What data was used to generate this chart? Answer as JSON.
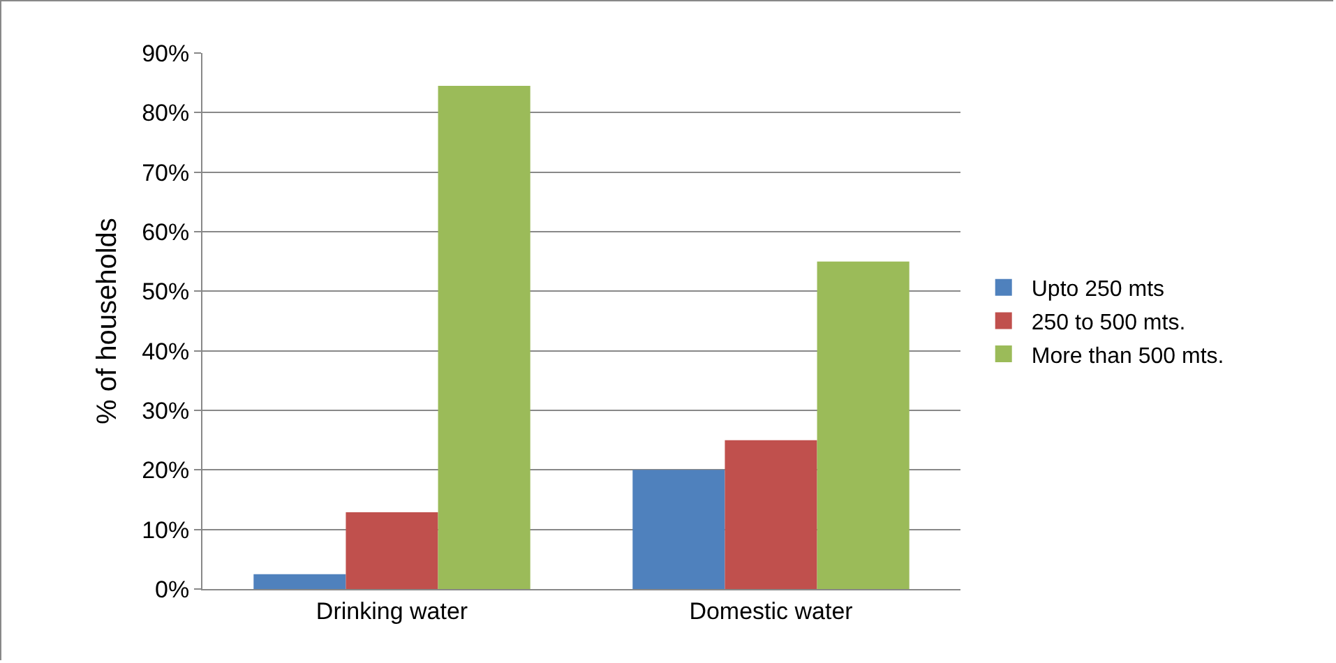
{
  "chart_data": {
    "type": "bar",
    "ylabel": "% of households",
    "categories": [
      "Drinking water",
      "Domestic water"
    ],
    "series": [
      {
        "name": "Upto 250 mts",
        "color": "#4f81bd",
        "values": [
          2.5,
          20
        ]
      },
      {
        "name": "250 to 500 mts.",
        "color": "#c0504d",
        "values": [
          12.9,
          25
        ]
      },
      {
        "name": "More than 500 mts.",
        "color": "#9bbb59",
        "values": [
          84.5,
          55
        ]
      }
    ],
    "ylim": [
      0,
      90
    ],
    "yticks": [
      {
        "value": 0,
        "label": "0%"
      },
      {
        "value": 10,
        "label": "10%"
      },
      {
        "value": 20,
        "label": "20%"
      },
      {
        "value": 30,
        "label": "30%"
      },
      {
        "value": 40,
        "label": "40%"
      },
      {
        "value": 50,
        "label": "50%"
      },
      {
        "value": 60,
        "label": "60%"
      },
      {
        "value": 70,
        "label": "70%"
      },
      {
        "value": 80,
        "label": "80%"
      },
      {
        "value": 90,
        "label": "90%"
      }
    ],
    "grid": "y",
    "legend": "right"
  }
}
